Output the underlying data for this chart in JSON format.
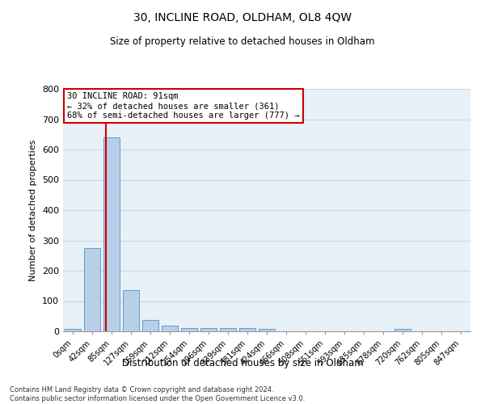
{
  "title": "30, INCLINE ROAD, OLDHAM, OL8 4QW",
  "subtitle": "Size of property relative to detached houses in Oldham",
  "xlabel": "Distribution of detached houses by size in Oldham",
  "ylabel": "Number of detached properties",
  "bin_labels": [
    "0sqm",
    "42sqm",
    "85sqm",
    "127sqm",
    "169sqm",
    "212sqm",
    "254sqm",
    "296sqm",
    "339sqm",
    "381sqm",
    "424sqm",
    "466sqm",
    "508sqm",
    "551sqm",
    "593sqm",
    "635sqm",
    "678sqm",
    "720sqm",
    "762sqm",
    "805sqm",
    "847sqm"
  ],
  "bar_heights": [
    8,
    275,
    640,
    137,
    38,
    20,
    12,
    11,
    10,
    10,
    7,
    0,
    0,
    0,
    0,
    0,
    0,
    8,
    0,
    0,
    0
  ],
  "bar_color": "#b8cfe8",
  "bar_edge_color": "#6699cc",
  "vline_color": "#cc0000",
  "annotation_text": "30 INCLINE ROAD: 91sqm\n← 32% of detached houses are smaller (361)\n68% of semi-detached houses are larger (777) →",
  "annotation_box_color": "white",
  "annotation_box_edge_color": "#cc0000",
  "ylim": [
    0,
    800
  ],
  "yticks": [
    0,
    100,
    200,
    300,
    400,
    500,
    600,
    700,
    800
  ],
  "grid_color": "#c8d8e8",
  "background_color": "#e8f0f8",
  "footer_text": "Contains HM Land Registry data © Crown copyright and database right 2024.\nContains public sector information licensed under the Open Government Licence v3.0."
}
